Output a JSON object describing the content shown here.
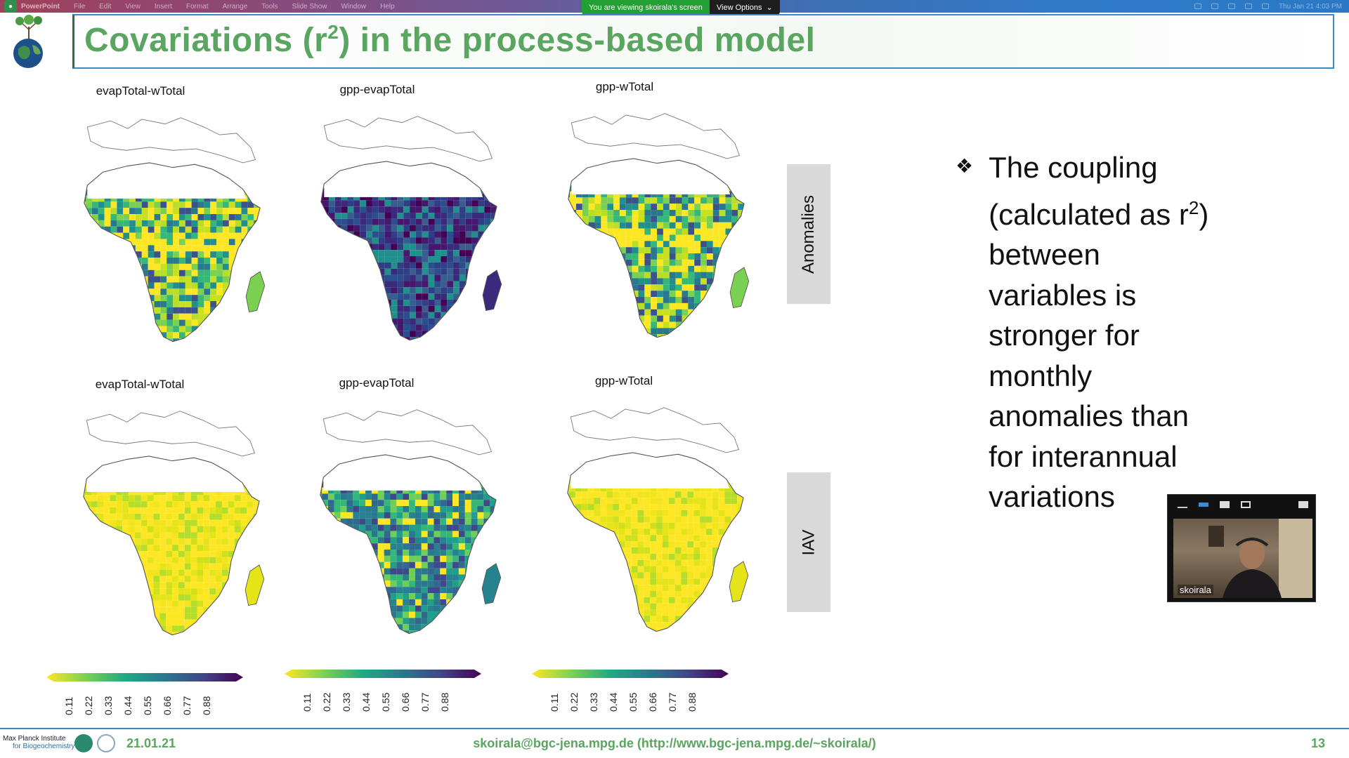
{
  "menubar": {
    "app_name": "PowerPoint",
    "items": [
      "File",
      "Edit",
      "View",
      "Insert",
      "Format",
      "Arrange",
      "Tools",
      "Slide Show",
      "Window",
      "Help"
    ],
    "clock": "Thu Jan 21  4:03 PM"
  },
  "share": {
    "notice": "You are viewing skoirala's screen",
    "view_options": "View Options"
  },
  "slide": {
    "title_pre": "Covariations (r",
    "title_sup": "2",
    "title_post": ") in the process-based model",
    "panels": [
      {
        "title": "evapTotal-wTotal",
        "row": "top",
        "style": "mixed"
      },
      {
        "title": "gpp-evapTotal",
        "row": "top",
        "style": "dark"
      },
      {
        "title": "gpp-wTotal",
        "row": "top",
        "style": "mixed"
      },
      {
        "title": "evapTotal-wTotal",
        "row": "bottom",
        "style": "yellow"
      },
      {
        "title": "gpp-evapTotal",
        "row": "bottom",
        "style": "green"
      },
      {
        "title": "gpp-wTotal",
        "row": "bottom",
        "style": "yellow"
      }
    ],
    "colorbar_ticks": [
      "0.11",
      "0.22",
      "0.33",
      "0.44",
      "0.55",
      "0.66",
      "0.77",
      "0.88"
    ],
    "row_labels": {
      "top": "Anomalies",
      "bottom": "IAV"
    },
    "bullet_lines": [
      "The coupling",
      "(calculated as r",
      "between",
      "variables is",
      "stronger for",
      "monthly",
      "anomalies than",
      "for interannual",
      "variations"
    ],
    "bullet_sup": "2",
    "bullet_line2_suffix": ")"
  },
  "video": {
    "name": "skoirala"
  },
  "footer": {
    "institute_line1": "Max Planck Institute",
    "institute_line2": "for Biogeochemistry",
    "date": "21.01.21",
    "email": "skoirala@bgc-jena.mpg.de (http://www.bgc-jena.mpg.de/~skoirala/)",
    "page": "13"
  },
  "colors": {
    "title_green": "#5aa55f",
    "viridis_dark": "#440154",
    "viridis_mid": "#21908c",
    "viridis_light": "#fde725"
  }
}
